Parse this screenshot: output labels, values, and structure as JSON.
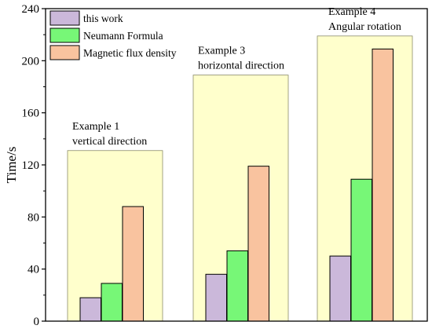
{
  "chart_data": {
    "type": "bar",
    "ylabel": "Time/s",
    "xlabel": "",
    "ylim": [
      0,
      240
    ],
    "yticks": [
      0,
      40,
      80,
      120,
      160,
      200,
      240
    ],
    "grid": false,
    "legend_position": "top-left",
    "groups": [
      {
        "annotation_lines": [
          "Example 1",
          "vertical direction"
        ],
        "highlight_max": 131
      },
      {
        "annotation_lines": [
          "Example 3",
          "horizontal direction"
        ],
        "highlight_max": 189
      },
      {
        "annotation_lines": [
          "Example 4",
          "Angular rotation"
        ],
        "highlight_max": 219
      }
    ],
    "series": [
      {
        "name": "this work",
        "color": "#cbb8da",
        "values": [
          18,
          36,
          50
        ]
      },
      {
        "name": "Neumann Formula",
        "color": "#77f777",
        "values": [
          29,
          54,
          109
        ]
      },
      {
        "name": "Magnetic flux density",
        "color": "#f9c39f",
        "values": [
          88,
          119,
          209
        ]
      }
    ],
    "highlight_color": "#ffffcc"
  }
}
